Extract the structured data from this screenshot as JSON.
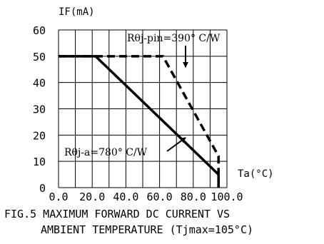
{
  "chart_data": {
    "type": "line",
    "ylabel": "IF(mA)",
    "xlabel": "Ta(°C)",
    "xlim": [
      0,
      100
    ],
    "ylim": [
      0,
      60
    ],
    "x_ticks": [
      0,
      20,
      40,
      60,
      80,
      100
    ],
    "x_tick_labels": [
      "0.0",
      "20.0",
      "40.0",
      "60.0",
      "80.0",
      "100.0"
    ],
    "y_ticks": [
      0,
      10,
      20,
      30,
      40,
      50,
      60
    ],
    "y_tick_labels": [
      "0",
      "10",
      "20",
      "30",
      "40",
      "50",
      "60"
    ],
    "grid": true,
    "series": [
      {
        "name": "Rθj-pin=390° C/W",
        "style": "dashed",
        "x": [
          0,
          62,
          95,
          95
        ],
        "y": [
          50,
          50,
          12,
          0
        ]
      },
      {
        "name": "Rθj-a=780° C/W",
        "style": "solid",
        "x": [
          0,
          22,
          95,
          95
        ],
        "y": [
          50,
          50,
          5,
          0
        ]
      }
    ],
    "annotations": {
      "pin": "Rθj-pin=390° C/W",
      "ambient": "Rθj-a=780° C/W"
    },
    "caption_line1": "FIG.5 MAXIMUM FORWARD DC CURRENT VS",
    "caption_line2": "AMBIENT TEMPERATURE (Tjmax=105°C)",
    "colors": {
      "line": "#000000",
      "grid": "#000000"
    }
  }
}
